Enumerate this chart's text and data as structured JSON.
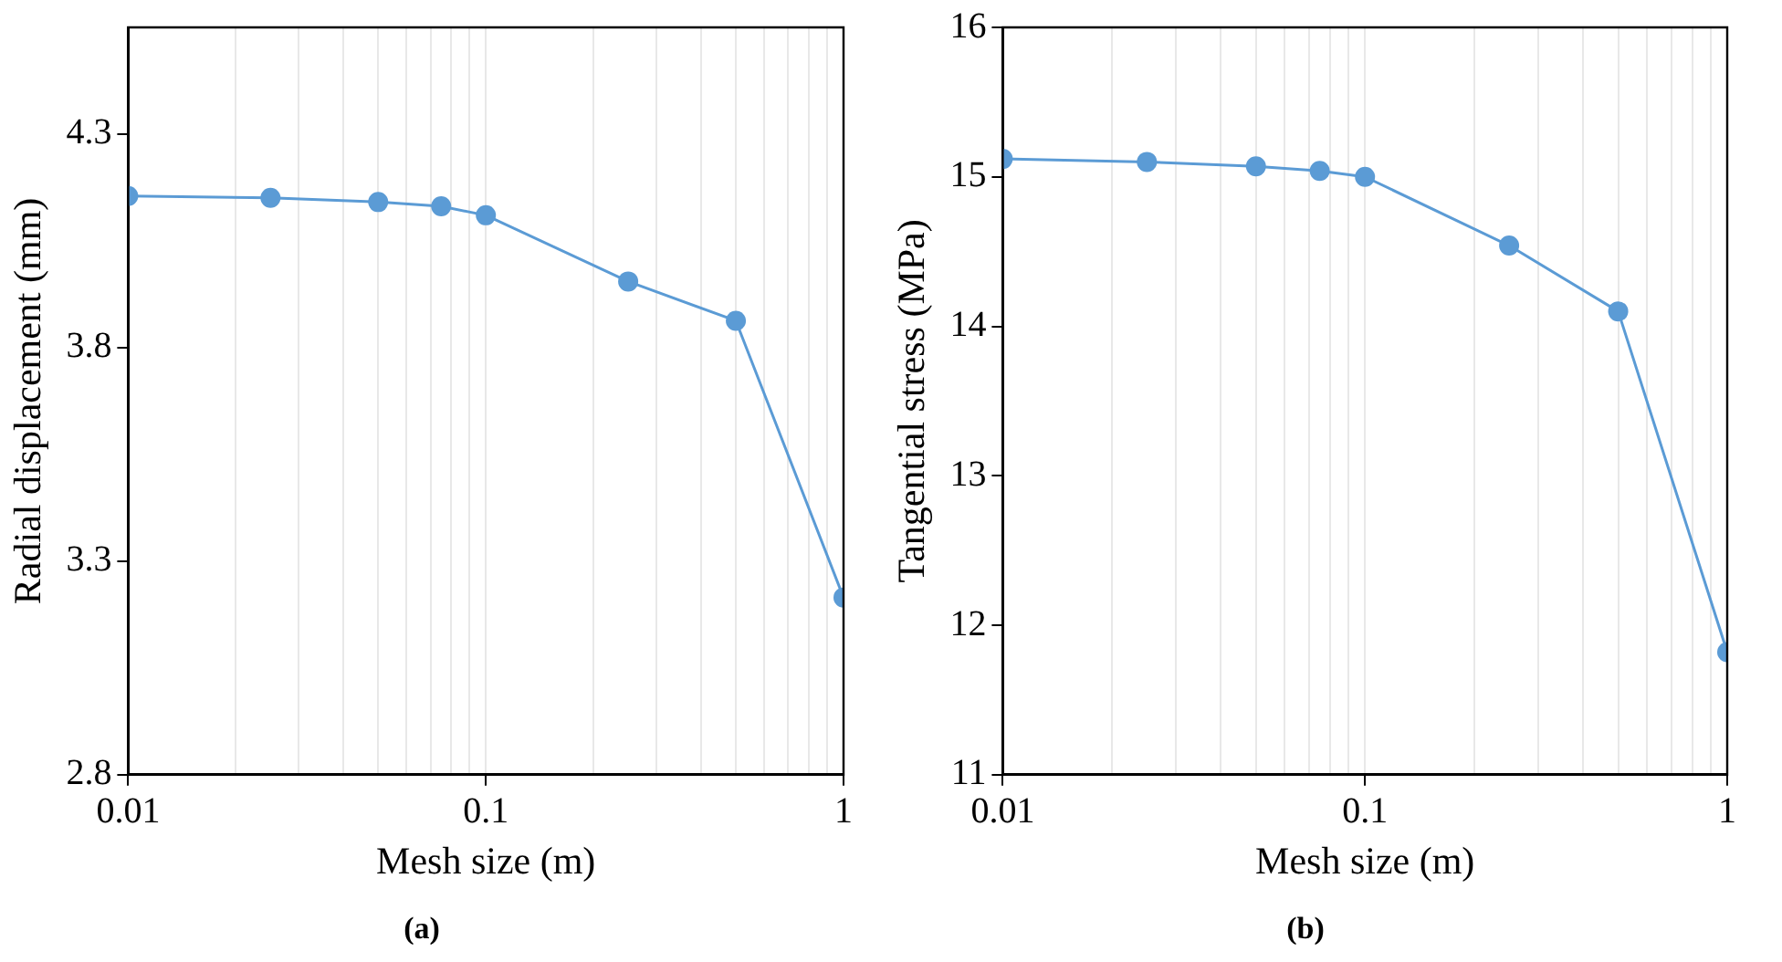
{
  "chart_data": [
    {
      "type": "line",
      "title": "(a)",
      "xlabel": "Mesh size (m)",
      "ylabel": "Radial displacement (mm)",
      "log": "x",
      "grid": "x",
      "marker": "circle",
      "line_style": "solid",
      "x": [
        0.01,
        0.025,
        0.05,
        0.075,
        0.1,
        0.25,
        0.5,
        1
      ],
      "series": [
        {
          "color": "#5b9bd5",
          "values": [
            4.155,
            4.151,
            4.141,
            4.131,
            4.11,
            3.955,
            3.863,
            3.215
          ]
        }
      ],
      "xlim": [
        0.01,
        1
      ],
      "xticks": [
        0.01,
        {
          "value": 0.02,
          "label": null
        },
        {
          "value": 0.03,
          "label": null
        },
        {
          "value": 0.04,
          "label": null
        },
        {
          "value": 0.05,
          "label": null
        },
        {
          "value": 0.06,
          "label": null
        },
        {
          "value": 0.07,
          "label": null
        },
        {
          "value": 0.08,
          "label": null
        },
        {
          "value": 0.09,
          "label": null
        },
        0.1,
        {
          "value": 0.2,
          "label": null
        },
        {
          "value": 0.3,
          "label": null
        },
        {
          "value": 0.4,
          "label": null
        },
        {
          "value": 0.5,
          "label": null
        },
        {
          "value": 0.6,
          "label": null
        },
        {
          "value": 0.7,
          "label": null
        },
        {
          "value": 0.8,
          "label": null
        },
        {
          "value": 0.9,
          "label": null
        },
        1
      ],
      "ylim": [
        2.8,
        4.55
      ],
      "yticks": [
        2.8,
        3.3,
        3.8,
        4.3
      ]
    },
    {
      "type": "line",
      "title": "(b)",
      "xlabel": "Mesh size (m)",
      "ylabel": "Tangential stress (MPa)",
      "log": "x",
      "grid": "x",
      "marker": "circle",
      "line_style": "solid",
      "x": [
        0.01,
        0.025,
        0.05,
        0.075,
        0.1,
        0.25,
        0.5,
        1
      ],
      "series": [
        {
          "color": "#5b9bd5",
          "values": [
            15.12,
            15.1,
            15.07,
            15.04,
            15.0,
            14.54,
            14.1,
            11.82
          ]
        }
      ],
      "xlim": [
        0.01,
        1
      ],
      "xticks": [
        0.01,
        {
          "value": 0.02,
          "label": null
        },
        {
          "value": 0.03,
          "label": null
        },
        {
          "value": 0.04,
          "label": null
        },
        {
          "value": 0.05,
          "label": null
        },
        {
          "value": 0.06,
          "label": null
        },
        {
          "value": 0.07,
          "label": null
        },
        {
          "value": 0.08,
          "label": null
        },
        {
          "value": 0.09,
          "label": null
        },
        0.1,
        {
          "value": 0.2,
          "label": null
        },
        {
          "value": 0.3,
          "label": null
        },
        {
          "value": 0.4,
          "label": null
        },
        {
          "value": 0.5,
          "label": null
        },
        {
          "value": 0.6,
          "label": null
        },
        {
          "value": 0.7,
          "label": null
        },
        {
          "value": 0.8,
          "label": null
        },
        {
          "value": 0.9,
          "label": null
        },
        1
      ],
      "ylim": [
        11,
        16
      ],
      "yticks": [
        11,
        12,
        13,
        14,
        15,
        16
      ]
    }
  ]
}
